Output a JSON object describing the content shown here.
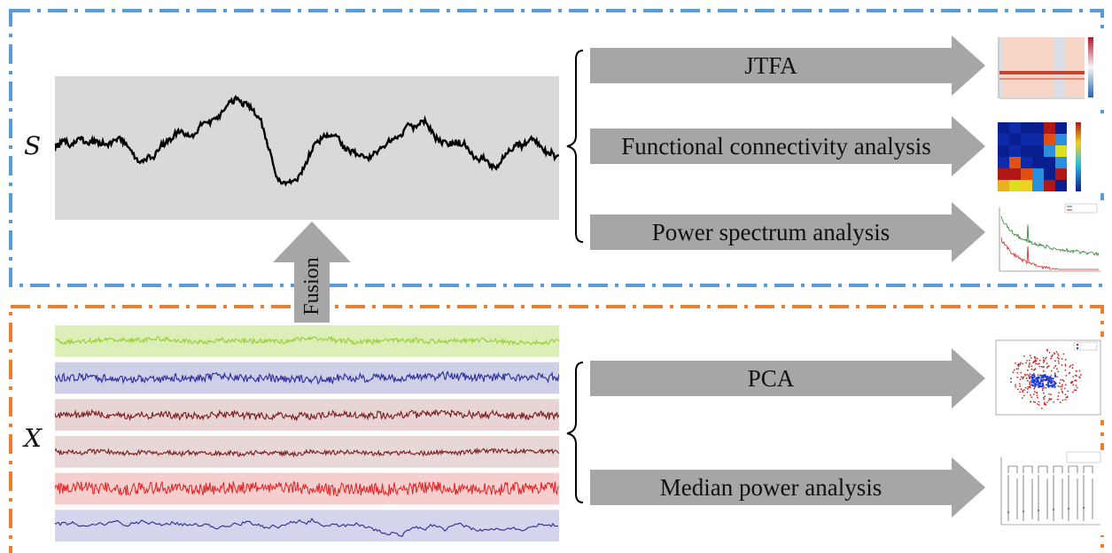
{
  "figure": {
    "top_group": {
      "variable_label": "S",
      "branches": [
        {
          "label": "JTFA",
          "result_icon": "spectrogram-thumbnail-icon"
        },
        {
          "label": "Functional connectivity analysis",
          "result_icon": "correlation-heatmap-thumbnail-icon"
        },
        {
          "label": "Power spectrum analysis",
          "result_icon": "power-spectrum-thumbnail-icon"
        }
      ],
      "border_color": "#5b9bd5"
    },
    "bottom_group": {
      "variable_label": "X",
      "branches": [
        {
          "label": "PCA",
          "result_icon": "pca-scatter-thumbnail-icon"
        },
        {
          "label": "Median power analysis",
          "result_icon": "median-power-boxplot-thumbnail-icon"
        }
      ],
      "channel_colors": [
        "#9acd32",
        "#2b2b9a",
        "#7a1a1a",
        "#7a1a1a",
        "#e02020",
        "#2b2b9a"
      ],
      "channel_bg_colors": [
        "#d9edb0",
        "#c9cbe6",
        "#e6cfcf",
        "#e6d3d3",
        "#f6c9c9",
        "#cfd0ea"
      ],
      "border_color": "#ed7d31"
    },
    "fusion_label": "Fusion"
  }
}
